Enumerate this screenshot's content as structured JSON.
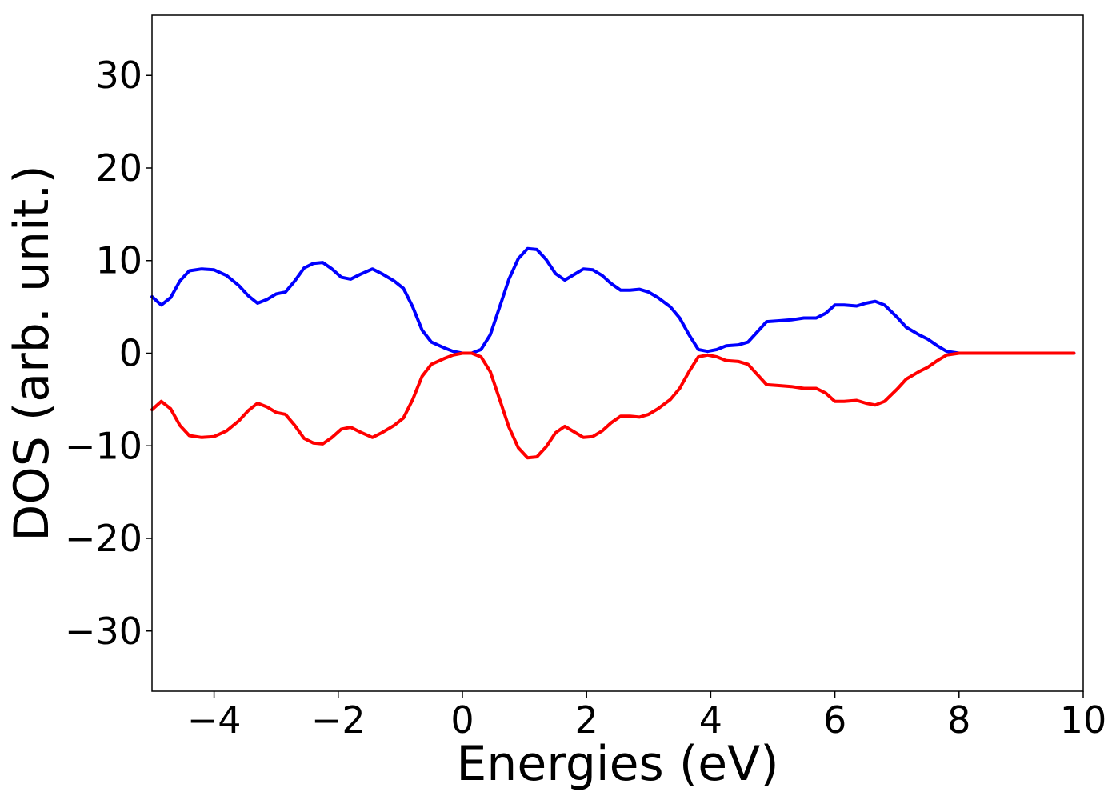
{
  "chart_data": {
    "type": "line",
    "title": "",
    "xlabel": "Energies (eV)",
    "ylabel": "DOS (arb. unit.)",
    "xlim": [
      -5,
      10
    ],
    "ylim": [
      -36.5,
      36.5
    ],
    "xticks": [
      -4,
      -2,
      0,
      2,
      4,
      6,
      8,
      10
    ],
    "xtick_labels": [
      "−4",
      "−2",
      "0",
      "2",
      "4",
      "6",
      "8",
      "10"
    ],
    "yticks": [
      30,
      20,
      10,
      0,
      -10,
      -20,
      -30
    ],
    "ytick_labels": [
      "30",
      "20",
      "10",
      "0",
      "−10",
      "−20",
      "−30"
    ],
    "grid": false,
    "legend": "none",
    "series": [
      {
        "color": "#0000ff",
        "points": [
          [
            -5.0,
            6.1
          ],
          [
            -4.85,
            5.2
          ],
          [
            -4.7,
            6.0
          ],
          [
            -4.55,
            7.8
          ],
          [
            -4.4,
            8.9
          ],
          [
            -4.2,
            9.1
          ],
          [
            -4.0,
            9.0
          ],
          [
            -3.8,
            8.4
          ],
          [
            -3.6,
            7.3
          ],
          [
            -3.45,
            6.2
          ],
          [
            -3.3,
            5.4
          ],
          [
            -3.15,
            5.8
          ],
          [
            -3.0,
            6.4
          ],
          [
            -2.85,
            6.6
          ],
          [
            -2.7,
            7.8
          ],
          [
            -2.55,
            9.2
          ],
          [
            -2.4,
            9.7
          ],
          [
            -2.25,
            9.8
          ],
          [
            -2.1,
            9.1
          ],
          [
            -1.95,
            8.2
          ],
          [
            -1.8,
            8.0
          ],
          [
            -1.65,
            8.5
          ],
          [
            -1.45,
            9.1
          ],
          [
            -1.3,
            8.6
          ],
          [
            -1.1,
            7.8
          ],
          [
            -0.95,
            7.0
          ],
          [
            -0.8,
            5.0
          ],
          [
            -0.65,
            2.5
          ],
          [
            -0.5,
            1.2
          ],
          [
            -0.3,
            0.6
          ],
          [
            -0.15,
            0.2
          ],
          [
            0.0,
            0.0
          ],
          [
            0.15,
            0.0
          ],
          [
            0.3,
            0.4
          ],
          [
            0.45,
            2.0
          ],
          [
            0.6,
            5.0
          ],
          [
            0.75,
            8.0
          ],
          [
            0.9,
            10.2
          ],
          [
            1.05,
            11.3
          ],
          [
            1.2,
            11.2
          ],
          [
            1.35,
            10.1
          ],
          [
            1.5,
            8.6
          ],
          [
            1.65,
            7.9
          ],
          [
            1.8,
            8.5
          ],
          [
            1.95,
            9.1
          ],
          [
            2.1,
            9.0
          ],
          [
            2.25,
            8.4
          ],
          [
            2.4,
            7.5
          ],
          [
            2.55,
            6.8
          ],
          [
            2.7,
            6.8
          ],
          [
            2.85,
            6.9
          ],
          [
            3.0,
            6.6
          ],
          [
            3.15,
            6.0
          ],
          [
            3.35,
            5.0
          ],
          [
            3.5,
            3.8
          ],
          [
            3.65,
            2.0
          ],
          [
            3.8,
            0.4
          ],
          [
            3.95,
            0.2
          ],
          [
            4.1,
            0.4
          ],
          [
            4.25,
            0.8
          ],
          [
            4.45,
            0.9
          ],
          [
            4.6,
            1.2
          ],
          [
            4.75,
            2.3
          ],
          [
            4.9,
            3.4
          ],
          [
            5.1,
            3.5
          ],
          [
            5.3,
            3.6
          ],
          [
            5.5,
            3.8
          ],
          [
            5.7,
            3.8
          ],
          [
            5.85,
            4.3
          ],
          [
            6.0,
            5.2
          ],
          [
            6.15,
            5.2
          ],
          [
            6.35,
            5.1
          ],
          [
            6.5,
            5.4
          ],
          [
            6.65,
            5.6
          ],
          [
            6.8,
            5.2
          ],
          [
            7.0,
            3.9
          ],
          [
            7.15,
            2.8
          ],
          [
            7.35,
            2.0
          ],
          [
            7.5,
            1.5
          ],
          [
            7.65,
            0.8
          ],
          [
            7.8,
            0.2
          ],
          [
            8.0,
            0.0
          ],
          [
            8.5,
            0.0
          ],
          [
            9.0,
            0.0
          ],
          [
            9.5,
            0.0
          ],
          [
            9.85,
            0.0
          ]
        ]
      },
      {
        "color": "#ff0000",
        "points": [
          [
            -5.0,
            -6.1
          ],
          [
            -4.85,
            -5.2
          ],
          [
            -4.7,
            -6.0
          ],
          [
            -4.55,
            -7.8
          ],
          [
            -4.4,
            -8.9
          ],
          [
            -4.2,
            -9.1
          ],
          [
            -4.0,
            -9.0
          ],
          [
            -3.8,
            -8.4
          ],
          [
            -3.6,
            -7.3
          ],
          [
            -3.45,
            -6.2
          ],
          [
            -3.3,
            -5.4
          ],
          [
            -3.15,
            -5.8
          ],
          [
            -3.0,
            -6.4
          ],
          [
            -2.85,
            -6.6
          ],
          [
            -2.7,
            -7.8
          ],
          [
            -2.55,
            -9.2
          ],
          [
            -2.4,
            -9.7
          ],
          [
            -2.25,
            -9.8
          ],
          [
            -2.1,
            -9.1
          ],
          [
            -1.95,
            -8.2
          ],
          [
            -1.8,
            -8.0
          ],
          [
            -1.65,
            -8.5
          ],
          [
            -1.45,
            -9.1
          ],
          [
            -1.3,
            -8.6
          ],
          [
            -1.1,
            -7.8
          ],
          [
            -0.95,
            -7.0
          ],
          [
            -0.8,
            -5.0
          ],
          [
            -0.65,
            -2.5
          ],
          [
            -0.5,
            -1.2
          ],
          [
            -0.3,
            -0.6
          ],
          [
            -0.15,
            -0.2
          ],
          [
            0.0,
            0.0
          ],
          [
            0.15,
            0.0
          ],
          [
            0.3,
            -0.4
          ],
          [
            0.45,
            -2.0
          ],
          [
            0.6,
            -5.0
          ],
          [
            0.75,
            -8.0
          ],
          [
            0.9,
            -10.2
          ],
          [
            1.05,
            -11.3
          ],
          [
            1.2,
            -11.2
          ],
          [
            1.35,
            -10.1
          ],
          [
            1.5,
            -8.6
          ],
          [
            1.65,
            -7.9
          ],
          [
            1.8,
            -8.5
          ],
          [
            1.95,
            -9.1
          ],
          [
            2.1,
            -9.0
          ],
          [
            2.25,
            -8.4
          ],
          [
            2.4,
            -7.5
          ],
          [
            2.55,
            -6.8
          ],
          [
            2.7,
            -6.8
          ],
          [
            2.85,
            -6.9
          ],
          [
            3.0,
            -6.6
          ],
          [
            3.15,
            -6.0
          ],
          [
            3.35,
            -5.0
          ],
          [
            3.5,
            -3.8
          ],
          [
            3.65,
            -2.0
          ],
          [
            3.8,
            -0.4
          ],
          [
            3.95,
            -0.2
          ],
          [
            4.1,
            -0.4
          ],
          [
            4.25,
            -0.8
          ],
          [
            4.45,
            -0.9
          ],
          [
            4.6,
            -1.2
          ],
          [
            4.75,
            -2.3
          ],
          [
            4.9,
            -3.4
          ],
          [
            5.1,
            -3.5
          ],
          [
            5.3,
            -3.6
          ],
          [
            5.5,
            -3.8
          ],
          [
            5.7,
            -3.8
          ],
          [
            5.85,
            -4.3
          ],
          [
            6.0,
            -5.2
          ],
          [
            6.15,
            -5.2
          ],
          [
            6.35,
            -5.1
          ],
          [
            6.5,
            -5.4
          ],
          [
            6.65,
            -5.6
          ],
          [
            6.8,
            -5.2
          ],
          [
            7.0,
            -3.9
          ],
          [
            7.15,
            -2.8
          ],
          [
            7.35,
            -2.0
          ],
          [
            7.5,
            -1.5
          ],
          [
            7.65,
            -0.8
          ],
          [
            7.8,
            -0.2
          ],
          [
            8.0,
            0.0
          ],
          [
            8.5,
            0.0
          ],
          [
            9.0,
            0.0
          ],
          [
            9.5,
            0.0
          ],
          [
            9.85,
            0.0
          ]
        ]
      }
    ]
  }
}
